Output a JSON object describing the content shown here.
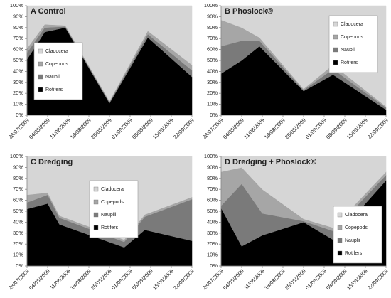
{
  "chart_data": [
    {
      "type": "stacked_area",
      "title": "A Control",
      "legend": "center left",
      "x": [
        "28/07/2009",
        "03/08/2009",
        "10/08/2009",
        "25/08/2009",
        "07/09/2009",
        "22/09/2009"
      ],
      "series": [
        {
          "name": "Rotifers",
          "color": "#000000",
          "values": [
            51,
            76,
            80,
            11,
            71,
            35
          ]
        },
        {
          "name": "Nauplii",
          "color": "#7a7a7a",
          "values": [
            6,
            4,
            1,
            1,
            3,
            6
          ]
        },
        {
          "name": "Copepods",
          "color": "#a6a6a6",
          "values": [
            4,
            3,
            1,
            1,
            3,
            5
          ]
        },
        {
          "name": "Cladocera",
          "color": "#d6d6d6",
          "values": [
            39,
            17,
            18,
            87,
            23,
            54
          ]
        }
      ],
      "xlim": [
        "28/07/2009",
        "22/09/2009"
      ],
      "xticks": [
        "28/07/2009",
        "04/08/2009",
        "11/08/2009",
        "18/08/2009",
        "25/08/2009",
        "01/09/2009",
        "08/09/2009",
        "15/09/2009",
        "22/09/2009"
      ],
      "ylim": [
        0,
        100
      ],
      "yticks": [
        {
          "value": 0,
          "label": "0%"
        },
        {
          "value": 10,
          "label": "10%"
        },
        {
          "value": 20,
          "label": "20%"
        },
        {
          "value": 30,
          "label": "30%"
        },
        {
          "value": 40,
          "label": "40%"
        },
        {
          "value": 50,
          "label": "50%"
        },
        {
          "value": 60,
          "label": "60%"
        },
        {
          "value": 70,
          "label": "70%"
        },
        {
          "value": 80,
          "label": "80%"
        },
        {
          "value": 90,
          "label": "90%"
        },
        {
          "value": 100,
          "label": "100%"
        }
      ]
    },
    {
      "type": "stacked_area",
      "title": "B Phoslock®",
      "legend": "upper right",
      "x": [
        "28/07/2009",
        "04/08/2009",
        "10/08/2009",
        "25/08/2009",
        "04/09/2009",
        "22/09/2009"
      ],
      "series": [
        {
          "name": "Rotifers",
          "color": "#000000",
          "values": [
            38,
            50,
            63,
            22,
            37,
            5
          ]
        },
        {
          "name": "Nauplii",
          "color": "#7a7a7a",
          "values": [
            25,
            18,
            5,
            1,
            5,
            2
          ]
        },
        {
          "name": "Copepods",
          "color": "#a6a6a6",
          "values": [
            24,
            12,
            3,
            1,
            4,
            1
          ]
        },
        {
          "name": "Cladocera",
          "color": "#d6d6d6",
          "values": [
            13,
            20,
            29,
            76,
            54,
            92
          ]
        }
      ],
      "xlim": [
        "28/07/2009",
        "22/09/2009"
      ],
      "xticks": [
        "28/07/2009",
        "04/08/2009",
        "11/08/2009",
        "18/08/2009",
        "25/08/2009",
        "01/09/2009",
        "08/09/2009",
        "15/09/2009",
        "22/09/2009"
      ],
      "ylim": [
        0,
        100
      ],
      "yticks": [
        {
          "value": 0,
          "label": "0%"
        },
        {
          "value": 10,
          "label": "10%"
        },
        {
          "value": 20,
          "label": "20%"
        },
        {
          "value": 30,
          "label": "30%"
        },
        {
          "value": 40,
          "label": "40%"
        },
        {
          "value": 50,
          "label": "50%"
        },
        {
          "value": 60,
          "label": "60%"
        },
        {
          "value": 70,
          "label": "70%"
        },
        {
          "value": 80,
          "label": "80%"
        },
        {
          "value": 90,
          "label": "90%"
        },
        {
          "value": 100,
          "label": "100%"
        }
      ]
    },
    {
      "type": "stacked_area",
      "title": "C Dredging",
      "legend": "center",
      "x": [
        "28/07/2009",
        "04/08/2009",
        "08/08/2009",
        "30/08/2009",
        "06/09/2009",
        "22/09/2009"
      ],
      "series": [
        {
          "name": "Rotifers",
          "color": "#000000",
          "values": [
            52,
            57,
            38,
            17,
            33,
            23
          ]
        },
        {
          "name": "Nauplii",
          "color": "#7a7a7a",
          "values": [
            6,
            8,
            6,
            5,
            12,
            38
          ]
        },
        {
          "name": "Copepods",
          "color": "#a6a6a6",
          "values": [
            7,
            2,
            2,
            2,
            2,
            2
          ]
        },
        {
          "name": "Cladocera",
          "color": "#d6d6d6",
          "values": [
            35,
            33,
            54,
            76,
            53,
            37
          ]
        }
      ],
      "xlim": [
        "28/07/2009",
        "22/09/2009"
      ],
      "xticks": [
        "28/07/2009",
        "04/08/2009",
        "11/08/2009",
        "18/08/2009",
        "25/08/2009",
        "01/09/2009",
        "08/09/2009",
        "15/09/2009",
        "22/09/2009"
      ],
      "ylim": [
        0,
        100
      ],
      "yticks": [
        {
          "value": 0,
          "label": "0%"
        },
        {
          "value": 10,
          "label": "10%"
        },
        {
          "value": 20,
          "label": "20%"
        },
        {
          "value": 30,
          "label": "30%"
        },
        {
          "value": 40,
          "label": "40%"
        },
        {
          "value": 50,
          "label": "50%"
        },
        {
          "value": 60,
          "label": "60%"
        },
        {
          "value": 70,
          "label": "70%"
        },
        {
          "value": 80,
          "label": "80%"
        },
        {
          "value": 90,
          "label": "90%"
        },
        {
          "value": 100,
          "label": "100%"
        }
      ]
    },
    {
      "type": "stacked_area",
      "title": "D Dredging + Phoslock®",
      "legend": "lower right",
      "x": [
        "28/07/2009",
        "04/08/2009",
        "11/08/2009",
        "25/08/2009",
        "04/09/2009",
        "22/09/2009"
      ],
      "series": [
        {
          "name": "Rotifers",
          "color": "#000000",
          "values": [
            53,
            18,
            28,
            40,
            24,
            78
          ]
        },
        {
          "name": "Nauplii",
          "color": "#7a7a7a",
          "values": [
            2,
            57,
            20,
            1,
            8,
            5
          ]
        },
        {
          "name": "Copepods",
          "color": "#a6a6a6",
          "values": [
            31,
            15,
            22,
            2,
            3,
            3
          ]
        },
        {
          "name": "Cladocera",
          "color": "#d6d6d6",
          "values": [
            14,
            10,
            30,
            57,
            65,
            14
          ]
        }
      ],
      "xlim": [
        "28/07/2009",
        "22/09/2009"
      ],
      "xticks": [
        "28/07/2009",
        "04/08/2009",
        "11/08/2009",
        "18/08/2009",
        "25/08/2009",
        "01/09/2009",
        "08/09/2009",
        "15/09/2009",
        "22/09/2009"
      ],
      "ylim": [
        0,
        100
      ],
      "yticks": [
        {
          "value": 0,
          "label": "0%"
        },
        {
          "value": 10,
          "label": "10%"
        },
        {
          "value": 20,
          "label": "20%"
        },
        {
          "value": 30,
          "label": "30%"
        },
        {
          "value": 40,
          "label": "40%"
        },
        {
          "value": 50,
          "label": "50%"
        },
        {
          "value": 60,
          "label": "60%"
        },
        {
          "value": 70,
          "label": "70%"
        },
        {
          "value": 80,
          "label": "80%"
        },
        {
          "value": 90,
          "label": "90%"
        },
        {
          "value": 100,
          "label": "100%"
        }
      ]
    }
  ]
}
